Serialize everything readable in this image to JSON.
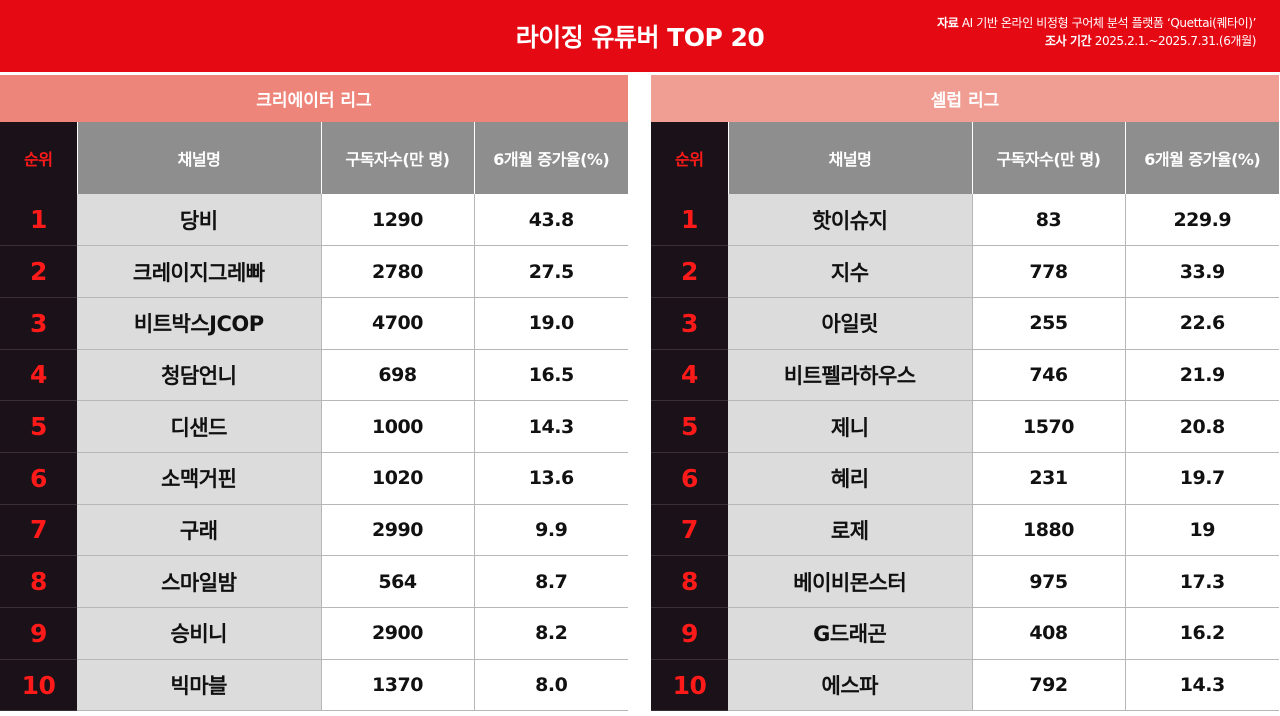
{
  "header": {
    "title": "라이징 유튜버 TOP 20",
    "source_label": "자료",
    "source_text": "AI 기반 온라인 비정형 구어체 분석 플랫폼 ‘Quettai(퀘타이)’",
    "period_label": "조사 기간",
    "period_text": "2025.2.1.~2025.7.31.(6개월)"
  },
  "columns": {
    "rank": "순위",
    "name": "채널명",
    "subs": "구독자수(만 명)",
    "growth": "6개월 증가율(%)"
  },
  "creator_league": {
    "title": "크리에이터 리그",
    "rows": [
      {
        "rank": "1",
        "name": "당비",
        "subs": "1290",
        "growth": "43.8"
      },
      {
        "rank": "2",
        "name": "크레이지그레빠",
        "subs": "2780",
        "growth": "27.5"
      },
      {
        "rank": "3",
        "name": "비트박스JCOP",
        "subs": "4700",
        "growth": "19.0"
      },
      {
        "rank": "4",
        "name": "청담언니",
        "subs": "698",
        "growth": "16.5"
      },
      {
        "rank": "5",
        "name": "디샌드",
        "subs": "1000",
        "growth": "14.3"
      },
      {
        "rank": "6",
        "name": "소맥거핀",
        "subs": "1020",
        "growth": "13.6"
      },
      {
        "rank": "7",
        "name": "구래",
        "subs": "2990",
        "growth": "9.9"
      },
      {
        "rank": "8",
        "name": "스마일밤",
        "subs": "564",
        "growth": "8.7"
      },
      {
        "rank": "9",
        "name": "승비니",
        "subs": "2900",
        "growth": "8.2"
      },
      {
        "rank": "10",
        "name": "빅마블",
        "subs": "1370",
        "growth": "8.0"
      }
    ]
  },
  "celeb_league": {
    "title": "셀럽 리그",
    "rows": [
      {
        "rank": "1",
        "name": "핫이슈지",
        "subs": "83",
        "growth": "229.9"
      },
      {
        "rank": "2",
        "name": "지수",
        "subs": "778",
        "growth": "33.9"
      },
      {
        "rank": "3",
        "name": "아일릿",
        "subs": "255",
        "growth": "22.6"
      },
      {
        "rank": "4",
        "name": "비트펠라하우스",
        "subs": "746",
        "growth": "21.9"
      },
      {
        "rank": "5",
        "name": "제니",
        "subs": "1570",
        "growth": "20.8"
      },
      {
        "rank": "6",
        "name": "혜리",
        "subs": "231",
        "growth": "19.7"
      },
      {
        "rank": "7",
        "name": "로제",
        "subs": "1880",
        "growth": "19"
      },
      {
        "rank": "8",
        "name": "베이비몬스터",
        "subs": "975",
        "growth": "17.3"
      },
      {
        "rank": "9",
        "name": "G드래곤",
        "subs": "408",
        "growth": "16.2"
      },
      {
        "rank": "10",
        "name": "에스파",
        "subs": "792",
        "growth": "14.3"
      }
    ]
  },
  "colors": {
    "header_red": "#e50914",
    "creator_band": "#ee857a",
    "celeb_band": "#f09d93",
    "rank_bg": "#1a1218",
    "rank_text": "#ff1a1a"
  }
}
